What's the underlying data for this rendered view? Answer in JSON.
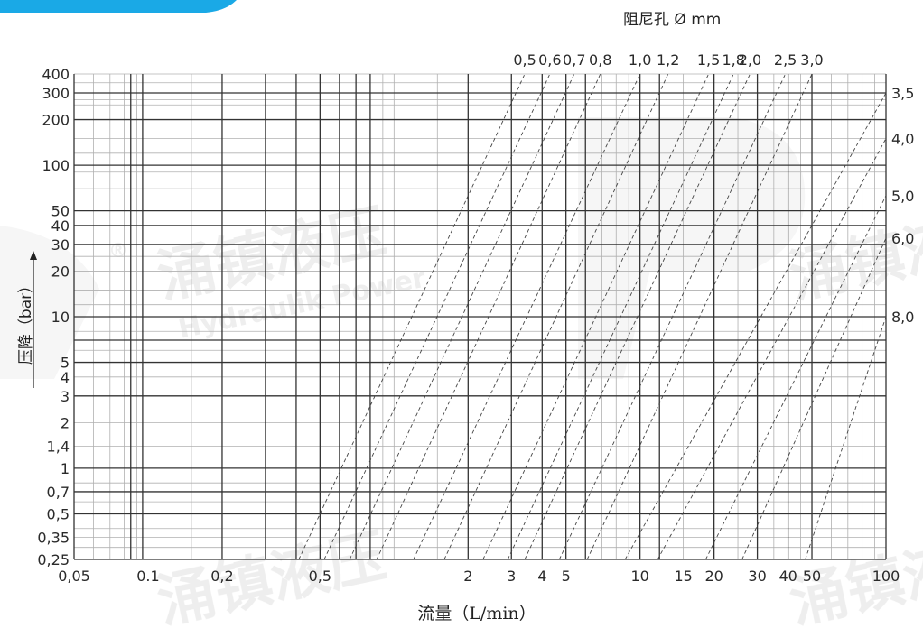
{
  "chart_data": {
    "type": "line",
    "title": "阻尼孔 Ø mm",
    "xlabel": "流量（L/min）",
    "ylabel": "压降（bar）",
    "x_scale": "log",
    "y_scale": "log",
    "xlim": [
      0.05,
      100
    ],
    "ylim": [
      0.25,
      400
    ],
    "grid": true,
    "x_ticks": [
      {
        "v": 0.05,
        "label": "0,05"
      },
      {
        "v": 0.1,
        "label": "0.1"
      },
      {
        "v": 0.2,
        "label": "0,2"
      },
      {
        "v": 0.5,
        "label": "0,5"
      },
      {
        "v": 2,
        "label": "2"
      },
      {
        "v": 3,
        "label": "3"
      },
      {
        "v": 4,
        "label": "4"
      },
      {
        "v": 5,
        "label": "5"
      },
      {
        "v": 10,
        "label": "10"
      },
      {
        "v": 15,
        "label": "15"
      },
      {
        "v": 20,
        "label": "20"
      },
      {
        "v": 30,
        "label": "30"
      },
      {
        "v": 40,
        "label": "40"
      },
      {
        "v": 50,
        "label": "50"
      },
      {
        "v": 100,
        "label": "100"
      }
    ],
    "y_ticks": [
      {
        "v": 0.25,
        "label": "0,25"
      },
      {
        "v": 0.35,
        "label": "0,35"
      },
      {
        "v": 0.5,
        "label": "0,5"
      },
      {
        "v": 0.7,
        "label": "0,7"
      },
      {
        "v": 1,
        "label": "1"
      },
      {
        "v": 1.4,
        "label": "1,4"
      },
      {
        "v": 2,
        "label": "2"
      },
      {
        "v": 3,
        "label": "3"
      },
      {
        "v": 4,
        "label": "4"
      },
      {
        "v": 5,
        "label": "5"
      },
      {
        "v": 10,
        "label": "10"
      },
      {
        "v": 20,
        "label": "20"
      },
      {
        "v": 30,
        "label": "30"
      },
      {
        "v": 40,
        "label": "40"
      },
      {
        "v": 50,
        "label": "50"
      },
      {
        "v": 100,
        "label": "100"
      },
      {
        "v": 200,
        "label": "200"
      },
      {
        "v": 300,
        "label": "300"
      },
      {
        "v": 400,
        "label": "400"
      }
    ],
    "x_grid_major": [
      0.085,
      0.095,
      0.2,
      0.3,
      0.4,
      0.5,
      0.6,
      0.7,
      0.8,
      2,
      3,
      4,
      5,
      6,
      10,
      12,
      20,
      30,
      40,
      50
    ],
    "x_grid_minor": [
      0.06,
      0.07,
      0.08,
      0.09,
      0.15,
      0.9,
      1,
      1.5,
      7,
      8,
      9,
      15,
      25,
      35,
      45,
      60,
      70,
      80,
      90
    ],
    "y_grid_major": [
      0.25,
      0.5,
      0.7,
      1,
      3,
      5,
      7,
      10,
      30,
      40,
      50,
      100,
      200,
      300
    ],
    "y_grid_minor": [
      0.3,
      0.35,
      0.4,
      0.6,
      0.8,
      1.4,
      2,
      4,
      6,
      8,
      12,
      15,
      20,
      25,
      60,
      70,
      80,
      90,
      120,
      150,
      250,
      270,
      350,
      400
    ],
    "series": [
      {
        "name": "0,5",
        "label_pos": "top",
        "points": [
          [
            0.41,
            0.25
          ],
          [
            3.4,
            400
          ]
        ]
      },
      {
        "name": "0,6",
        "label_pos": "top",
        "points": [
          [
            0.52,
            0.25
          ],
          [
            4.3,
            400
          ]
        ]
      },
      {
        "name": "0,7",
        "label_pos": "top",
        "points": [
          [
            0.66,
            0.25
          ],
          [
            5.4,
            400
          ]
        ]
      },
      {
        "name": "0,8",
        "label_pos": "top",
        "points": [
          [
            0.85,
            0.25
          ],
          [
            6.9,
            400
          ]
        ]
      },
      {
        "name": "1,0",
        "label_pos": "top",
        "points": [
          [
            1.2,
            0.25
          ],
          [
            10,
            400
          ]
        ]
      },
      {
        "name": "1,2",
        "label_pos": "top",
        "points": [
          [
            1.6,
            0.25
          ],
          [
            13,
            400
          ]
        ]
      },
      {
        "name": "1,5",
        "label_pos": "top",
        "points": [
          [
            2.3,
            0.25
          ],
          [
            19,
            400
          ]
        ]
      },
      {
        "name": "1,8",
        "label_pos": "top",
        "points": [
          [
            2.9,
            0.25
          ],
          [
            24,
            400
          ]
        ]
      },
      {
        "name": "2,0",
        "label_pos": "top",
        "points": [
          [
            3.4,
            0.25
          ],
          [
            28,
            400
          ]
        ]
      },
      {
        "name": "2,5",
        "label_pos": "top",
        "points": [
          [
            4.7,
            0.25
          ],
          [
            39,
            400
          ]
        ]
      },
      {
        "name": "3,0",
        "label_pos": "top",
        "points": [
          [
            6.1,
            0.25
          ],
          [
            50,
            400
          ]
        ]
      },
      {
        "name": "3,5",
        "label_pos": "right",
        "points": [
          [
            8.7,
            0.25
          ],
          [
            100,
            300
          ]
        ]
      },
      {
        "name": "4,0",
        "label_pos": "right",
        "points": [
          [
            11.8,
            0.25
          ],
          [
            100,
            150
          ]
        ]
      },
      {
        "name": "5,0",
        "label_pos": "right",
        "points": [
          [
            18.5,
            0.25
          ],
          [
            100,
            63
          ]
        ]
      },
      {
        "name": "6,0",
        "label_pos": "right",
        "points": [
          [
            26,
            0.25
          ],
          [
            100,
            33
          ]
        ]
      },
      {
        "name": "8,0",
        "label_pos": "right",
        "points": [
          [
            47,
            0.25
          ],
          [
            100,
            10
          ]
        ]
      }
    ]
  },
  "watermark": {
    "cn": "涌镇液压",
    "en": "Hydraulik Power",
    "mark": "®"
  }
}
